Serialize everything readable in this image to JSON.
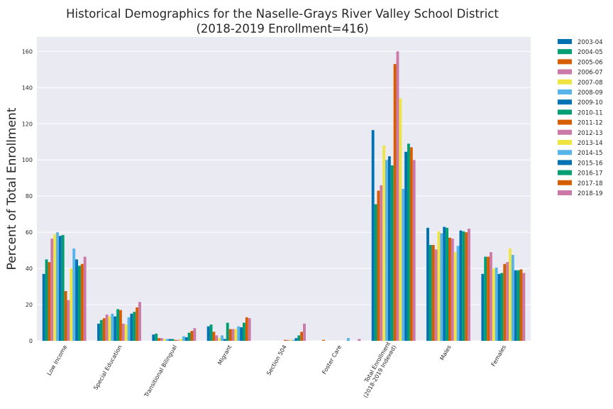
{
  "chart_data": {
    "type": "bar",
    "title": [
      "Historical Demographics for the Naselle-Grays River Valley School District",
      "(2018-2019 Enrollment=416)"
    ],
    "ylabel": "Percent of Total Enrollment",
    "xlabel": "",
    "ylim": [
      0,
      168
    ],
    "yticks": [
      0,
      20,
      40,
      60,
      80,
      100,
      120,
      140,
      160
    ],
    "grid": true,
    "legend_position": "outside-right",
    "categories": [
      [
        "Low Income"
      ],
      [
        "Special Education"
      ],
      [
        "Transitional Bilingual"
      ],
      [
        "Migrant"
      ],
      [
        "Section 504"
      ],
      [
        "Foster Care"
      ],
      [
        "Total Enrollment",
        "(2018-2019 Indexed)"
      ],
      [
        "Males"
      ],
      [
        "Females"
      ]
    ],
    "series": [
      {
        "name": "2003-04",
        "color": "#0072b2",
        "values": [
          37,
          9.5,
          3.5,
          8,
          0,
          0,
          116.5,
          62.5,
          37
        ]
      },
      {
        "name": "2004-05",
        "color": "#009e73",
        "values": [
          45,
          11.5,
          4,
          9,
          0,
          0,
          75.5,
          53,
          46.5
        ]
      },
      {
        "name": "2005-06",
        "color": "#d55e00",
        "values": [
          43.5,
          12.5,
          1.5,
          5,
          0,
          0.5,
          83,
          53,
          46.5
        ]
      },
      {
        "name": "2006-07",
        "color": "#cc79a7",
        "values": [
          56.5,
          14.5,
          1.5,
          3,
          0,
          0,
          86,
          50.5,
          49
        ]
      },
      {
        "name": "2007-08",
        "color": "#f0e442",
        "values": [
          59,
          13.5,
          1,
          1.5,
          0,
          0,
          108,
          60.5,
          40
        ]
      },
      {
        "name": "2008-09",
        "color": "#56b4e9",
        "values": [
          60,
          15,
          1,
          3,
          0,
          0,
          100,
          59.5,
          40.5
        ]
      },
      {
        "name": "2009-10",
        "color": "#0072b2",
        "values": [
          58,
          13.5,
          1,
          1,
          0,
          0,
          102,
          63,
          37
        ]
      },
      {
        "name": "2010-11",
        "color": "#009e73",
        "values": [
          58.5,
          17.5,
          1,
          10,
          0,
          0,
          97,
          62.5,
          37.5
        ]
      },
      {
        "name": "2011-12",
        "color": "#d55e00",
        "values": [
          27.5,
          17,
          0.5,
          6.5,
          0.5,
          0,
          153,
          57,
          42.5
        ]
      },
      {
        "name": "2012-13",
        "color": "#cc79a7",
        "values": [
          22.5,
          9.5,
          0.5,
          6.5,
          0.5,
          0,
          160,
          56.5,
          43.5
        ]
      },
      {
        "name": "2013-14",
        "color": "#f0e442",
        "values": [
          40,
          9,
          1,
          6.5,
          0.5,
          0,
          134,
          49,
          51
        ]
      },
      {
        "name": "2014-15",
        "color": "#56b4e9",
        "values": [
          51,
          13,
          2.5,
          8,
          0.5,
          1.5,
          84,
          52.5,
          47.5
        ]
      },
      {
        "name": "2015-16",
        "color": "#0072b2",
        "values": [
          45,
          15,
          2,
          7.5,
          1.5,
          0,
          104.5,
          61,
          39
        ]
      },
      {
        "name": "2016-17",
        "color": "#009e73",
        "values": [
          41.5,
          16,
          4.5,
          10,
          3,
          0,
          109,
          60.5,
          39
        ]
      },
      {
        "name": "2017-18",
        "color": "#d55e00",
        "values": [
          42.5,
          18.5,
          5.5,
          13,
          5,
          0,
          107,
          60,
          39.5
        ]
      },
      {
        "name": "2018-19",
        "color": "#cc79a7",
        "values": [
          46.5,
          21.5,
          7,
          12.5,
          9.5,
          1,
          100,
          62,
          37.5
        ]
      }
    ]
  }
}
